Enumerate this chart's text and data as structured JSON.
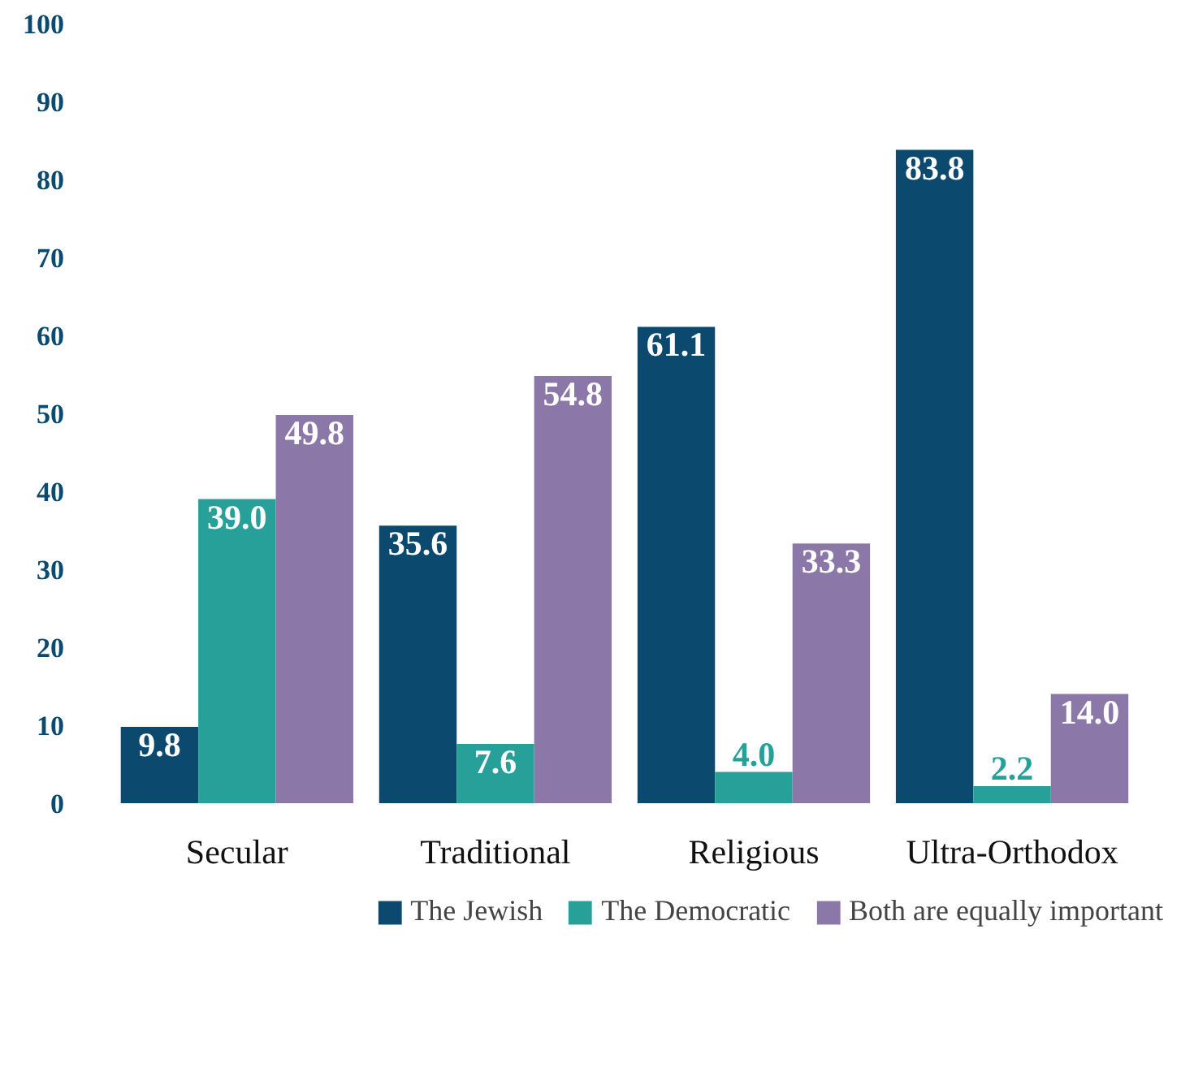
{
  "chart_data": {
    "type": "bar",
    "categories": [
      "Secular",
      "Traditional",
      "Religious",
      "Ultra-Orthodox"
    ],
    "series": [
      {
        "name": "The Jewish",
        "color": "#0b4a6e",
        "values": [
          9.8,
          35.6,
          61.1,
          83.8
        ],
        "value_labels": [
          "9.8",
          "35.6",
          "61.1",
          "83.8"
        ]
      },
      {
        "name": "The Democratic",
        "color": "#26a099",
        "values": [
          39.0,
          7.6,
          4.0,
          2.2
        ],
        "value_labels": [
          "39.0",
          "7.6",
          "4.0",
          "2.2"
        ]
      },
      {
        "name": "Both are equally important",
        "color": "#8b78a8",
        "values": [
          49.8,
          54.8,
          33.3,
          14.0
        ],
        "value_labels": [
          "49.8",
          "54.8",
          "33.3",
          "14.0"
        ]
      }
    ],
    "ylim": [
      0,
      100
    ],
    "yticks": [
      0,
      10,
      20,
      30,
      40,
      50,
      60,
      70,
      80,
      90,
      100
    ],
    "grid": false,
    "legend": "bottom"
  }
}
